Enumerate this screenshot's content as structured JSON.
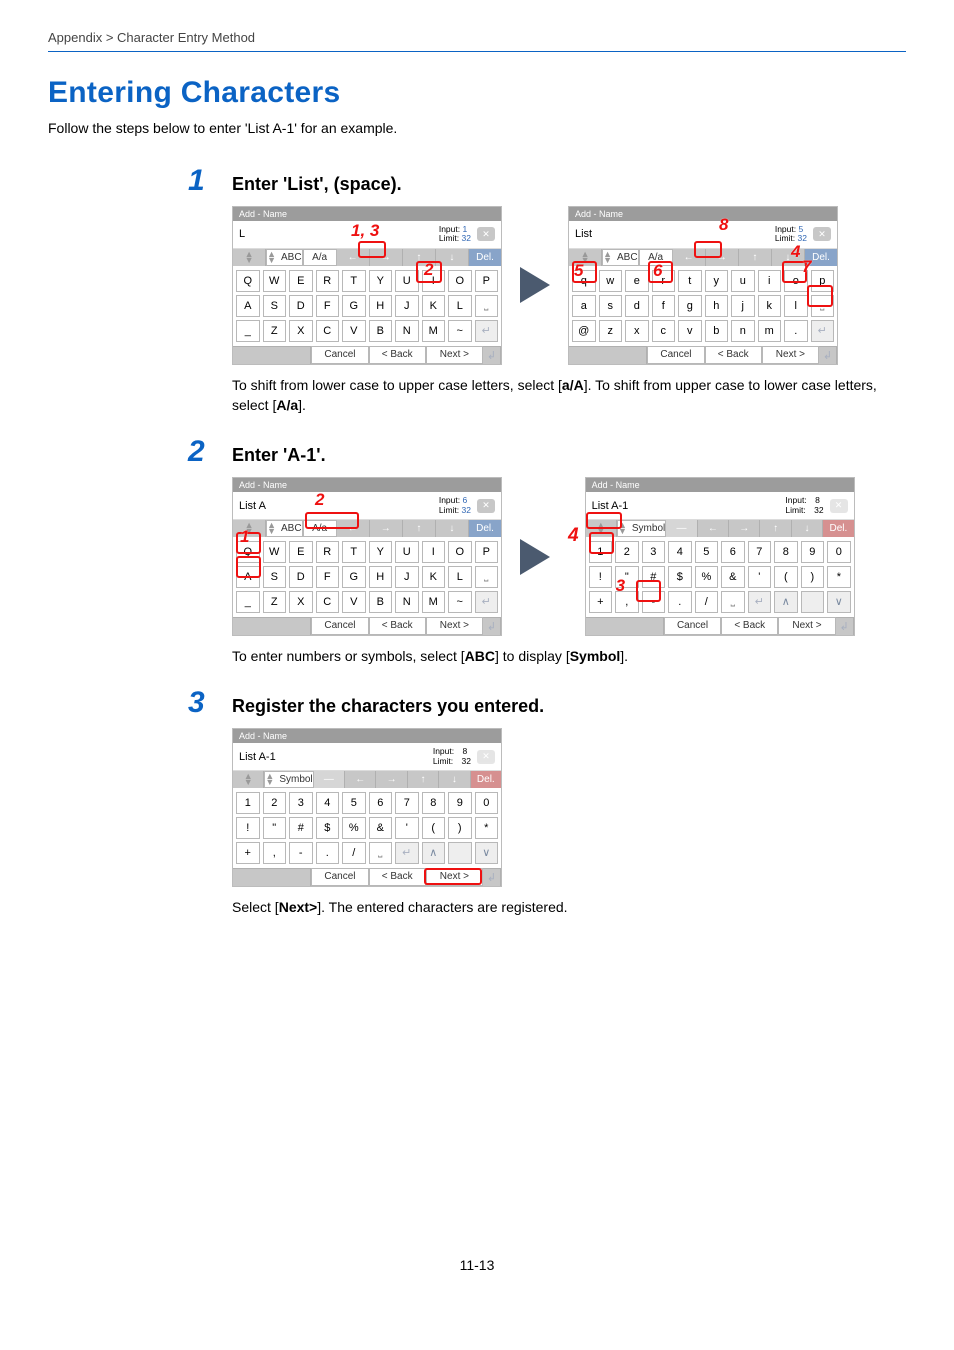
{
  "breadcrumb": "Appendix > Character Entry Method",
  "title": "Entering Characters",
  "intro": "Follow the steps below to enter 'List A-1' for an example.",
  "pageNum": "11-13",
  "steps": [
    {
      "num": "1",
      "title": "Enter 'List', (space)."
    },
    {
      "num": "2",
      "title": "Enter 'A-1'."
    },
    {
      "num": "3",
      "title": "Register the characters you entered."
    }
  ],
  "notes": {
    "n1a": "To shift from lower case to upper case letters, select [",
    "n1b": "a/A",
    "n1c": "]. To shift from upper case to lower case letters, select [",
    "n1d": "A/a",
    "n1e": "].",
    "n2a": "To enter numbers or symbols, select [",
    "n2b": "ABC",
    "n2c": "] to display [",
    "n2d": "Symbol",
    "n2e": "].",
    "n3a": "Select [",
    "n3b": "Next>",
    "n3c": "]. The entered characters are registered."
  },
  "kbCommon": {
    "title": "Add - Name",
    "inputLbl": "Input:",
    "limitLbl": "Limit:",
    "limitVal": "32",
    "abc": "ABC",
    "symbol": "Symbol",
    "aa": "A/a",
    "del": "Del.",
    "cancel": "Cancel",
    "back": "< Back",
    "next": "Next >"
  },
  "kb1L": {
    "text": "L",
    "input": "1",
    "r1": [
      "Q",
      "W",
      "E",
      "R",
      "T",
      "Y",
      "U",
      "I",
      "O",
      "P"
    ],
    "r2": [
      "A",
      "S",
      "D",
      "F",
      "G",
      "H",
      "J",
      "K",
      "L",
      "␣"
    ],
    "r3": [
      "_",
      "Z",
      "X",
      "C",
      "V",
      "B",
      "N",
      "M",
      "~",
      "↵"
    ]
  },
  "kb1R": {
    "text": "List",
    "input": "5",
    "r1": [
      "q",
      "w",
      "e",
      "r",
      "t",
      "y",
      "u",
      "i",
      "o",
      "p"
    ],
    "r2": [
      "a",
      "s",
      "d",
      "f",
      "g",
      "h",
      "j",
      "k",
      "l",
      "␣"
    ],
    "r3": [
      "@",
      "z",
      "x",
      "c",
      "v",
      "b",
      "n",
      "m",
      ".",
      "↵"
    ]
  },
  "kb2L": {
    "text": "List A",
    "input": "6",
    "r1": [
      "Q",
      "W",
      "E",
      "R",
      "T",
      "Y",
      "U",
      "I",
      "O",
      "P"
    ],
    "r2": [
      "A",
      "S",
      "D",
      "F",
      "G",
      "H",
      "J",
      "K",
      "L",
      "␣"
    ],
    "r3": [
      "_",
      "Z",
      "X",
      "C",
      "V",
      "B",
      "N",
      "M",
      "~",
      "↵"
    ]
  },
  "kb2R": {
    "text": "List A-1",
    "input": "8",
    "r1": [
      "1",
      "2",
      "3",
      "4",
      "5",
      "6",
      "7",
      "8",
      "9",
      "0"
    ],
    "r2": [
      "!",
      "\"",
      "#",
      "$",
      "%",
      "&",
      "'",
      "(",
      ")",
      "*"
    ],
    "r3": [
      "+",
      ",",
      "-",
      ".",
      "/",
      "␣",
      "↵",
      "∧",
      "",
      "∨"
    ]
  },
  "kb3": {
    "text": "List A-1",
    "input": "8",
    "r1": [
      "1",
      "2",
      "3",
      "4",
      "5",
      "6",
      "7",
      "8",
      "9",
      "0"
    ],
    "r2": [
      "!",
      "\"",
      "#",
      "$",
      "%",
      "&",
      "'",
      "(",
      ")",
      "*"
    ],
    "r3": [
      "+",
      ",",
      "-",
      ".",
      "/",
      "␣",
      "↵",
      "∧",
      "",
      "∨"
    ]
  }
}
